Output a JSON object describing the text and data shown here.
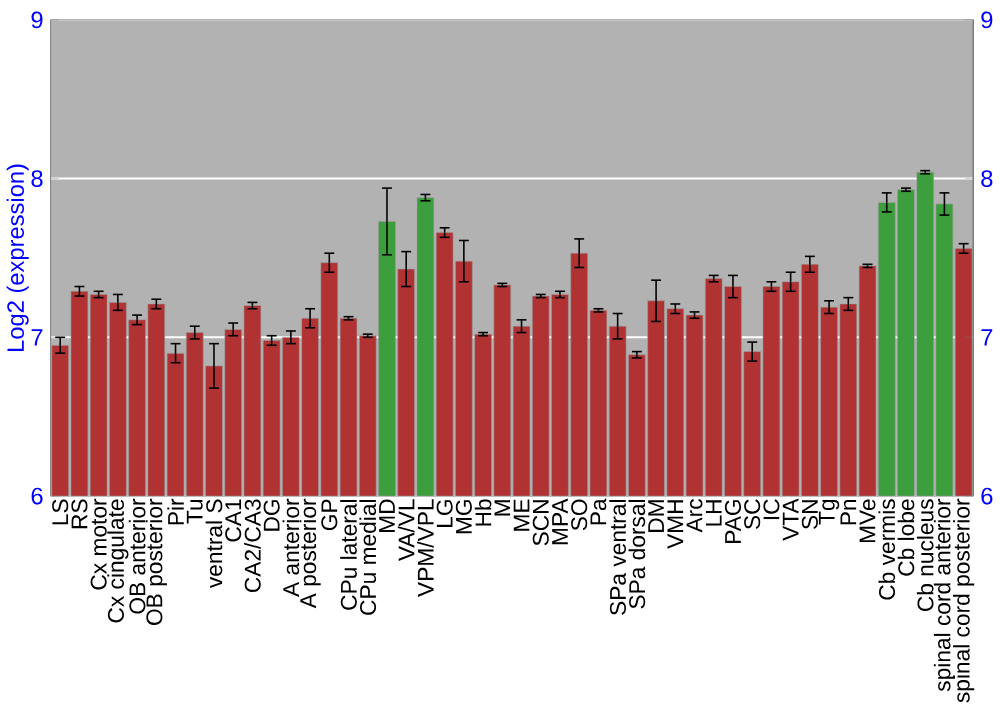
{
  "chart_data": {
    "type": "bar",
    "ylabel": "Log2 (expression)",
    "categories": [
      "LS",
      "RS",
      "Cx motor",
      "Cx cingulate",
      "OB anterior",
      "OB posterior",
      "Pir",
      "Tu",
      "ventral S",
      "CA1",
      "CA2/CA3",
      "DG",
      "A anterior",
      "A posterior",
      "GP",
      "CPu lateral",
      "CPu medial",
      "MD",
      "VA/VL",
      "VPM/VPL",
      "LG",
      "MG",
      "Hb",
      "M",
      "ME",
      "SCN",
      "MPA",
      "SO",
      "Pa",
      "SPa ventral",
      "SPa dorsal",
      "DM",
      "VMH",
      "Arc",
      "LH",
      "PAG",
      "SC",
      "IC",
      "VTA",
      "SN",
      "Tg",
      "Pn",
      "MVe",
      "Cb vermis",
      "Cb lobe",
      "Cb nucleus",
      "spinal cord anterior",
      "spinal cord posterior"
    ],
    "values": [
      6.95,
      7.29,
      7.27,
      7.22,
      7.11,
      7.21,
      6.9,
      7.03,
      6.82,
      7.05,
      7.2,
      6.98,
      7.0,
      7.12,
      7.47,
      7.12,
      7.01,
      7.73,
      7.43,
      7.88,
      7.66,
      7.48,
      7.02,
      7.33,
      7.07,
      7.26,
      7.27,
      7.53,
      7.17,
      7.07,
      6.89,
      7.23,
      7.18,
      7.14,
      7.37,
      7.32,
      6.91,
      7.32,
      7.35,
      7.46,
      7.19,
      7.21,
      7.45,
      7.85,
      7.93,
      8.04,
      7.84,
      7.56
    ],
    "errors": [
      0.05,
      0.03,
      0.02,
      0.05,
      0.03,
      0.03,
      0.06,
      0.04,
      0.14,
      0.04,
      0.02,
      0.03,
      0.04,
      0.06,
      0.06,
      0.01,
      0.01,
      0.21,
      0.11,
      0.02,
      0.03,
      0.13,
      0.01,
      0.01,
      0.04,
      0.01,
      0.02,
      0.09,
      0.01,
      0.08,
      0.02,
      0.13,
      0.03,
      0.02,
      0.02,
      0.07,
      0.06,
      0.03,
      0.06,
      0.05,
      0.04,
      0.04,
      0.01,
      0.06,
      0.01,
      0.01,
      0.07,
      0.03
    ],
    "colors": [
      "#b03232",
      "#b03232",
      "#b03232",
      "#b03232",
      "#b03232",
      "#b03232",
      "#b03232",
      "#b03232",
      "#b03232",
      "#b03232",
      "#b03232",
      "#b03232",
      "#b03232",
      "#b03232",
      "#b03232",
      "#b03232",
      "#b03232",
      "#3c9e3c",
      "#b03232",
      "#3c9e3c",
      "#b03232",
      "#b03232",
      "#b03232",
      "#b03232",
      "#b03232",
      "#b03232",
      "#b03232",
      "#b03232",
      "#b03232",
      "#b03232",
      "#b03232",
      "#b03232",
      "#b03232",
      "#b03232",
      "#b03232",
      "#b03232",
      "#b03232",
      "#b03232",
      "#b03232",
      "#b03232",
      "#b03232",
      "#b03232",
      "#b03232",
      "#3c9e3c",
      "#3c9e3c",
      "#3c9e3c",
      "#3c9e3c",
      "#b03232"
    ],
    "ylim": [
      6,
      9
    ],
    "yticks": [
      6,
      7,
      8,
      9
    ],
    "y2lim": [
      6,
      9
    ],
    "y2ticks": [
      6,
      7,
      8,
      9
    ],
    "grid": "y"
  }
}
